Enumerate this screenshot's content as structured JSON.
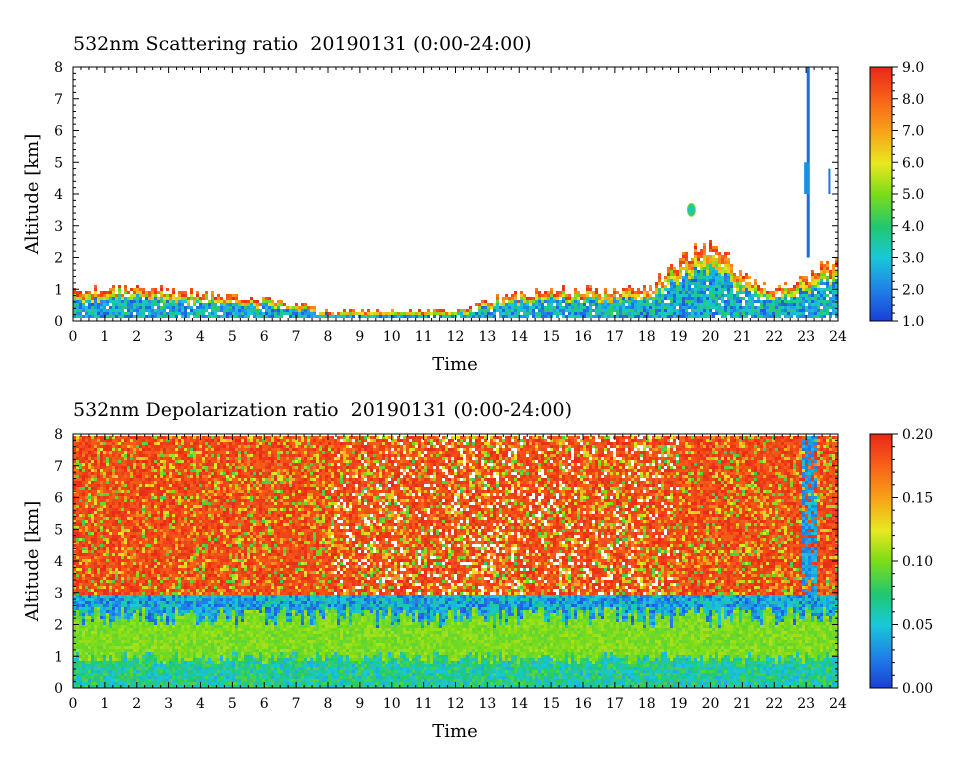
{
  "chart_data": [
    {
      "type": "heatmap",
      "title": "532nm Scattering ratio  20190131 (0:00-24:00)",
      "xlabel": "Time",
      "ylabel": "Altitude [km]",
      "xlim": [
        0,
        24
      ],
      "ylim": [
        0,
        8
      ],
      "xticks": [
        "0",
        "1",
        "2",
        "3",
        "4",
        "5",
        "6",
        "7",
        "8",
        "9",
        "10",
        "11",
        "12",
        "13",
        "14",
        "15",
        "16",
        "17",
        "18",
        "19",
        "20",
        "21",
        "22",
        "23",
        "24"
      ],
      "yticks": [
        "0",
        "1",
        "2",
        "3",
        "4",
        "5",
        "6",
        "7",
        "8"
      ],
      "colorbar": {
        "range": [
          1.0,
          9.0
        ],
        "ticks": [
          "1.0",
          "2.0",
          "3.0",
          "4.0",
          "5.0",
          "6.0",
          "7.0",
          "8.0",
          "9.0"
        ]
      },
      "features": {
        "boundary_layer_top_km": [
          [
            0,
            1.0
          ],
          [
            2,
            1.1
          ],
          [
            4,
            0.9
          ],
          [
            5,
            0.85
          ],
          [
            7,
            0.6
          ],
          [
            8,
            0.35
          ],
          [
            12,
            0.35
          ],
          [
            13,
            0.7
          ],
          [
            14,
            0.9
          ],
          [
            15,
            1.0
          ],
          [
            18,
            1.0
          ],
          [
            19,
            2.0
          ],
          [
            20,
            2.4
          ],
          [
            21,
            1.5
          ],
          [
            22,
            1.0
          ],
          [
            23,
            1.5
          ],
          [
            24,
            1.9
          ]
        ],
        "cloud_23h_top_km": 8.0,
        "cloud_19_4h_km": [
          3.3,
          3.7
        ]
      }
    },
    {
      "type": "heatmap",
      "title": "532nm Depolarization ratio  20190131 (0:00-24:00)",
      "xlabel": "Time",
      "ylabel": "Altitude [km]",
      "xlim": [
        0,
        24
      ],
      "ylim": [
        0,
        8
      ],
      "xticks": [
        "0",
        "1",
        "2",
        "3",
        "4",
        "5",
        "6",
        "7",
        "8",
        "9",
        "10",
        "11",
        "12",
        "13",
        "14",
        "15",
        "16",
        "17",
        "18",
        "19",
        "20",
        "21",
        "22",
        "23",
        "24"
      ],
      "yticks": [
        "0",
        "1",
        "2",
        "3",
        "4",
        "5",
        "6",
        "7",
        "8"
      ],
      "colorbar": {
        "range": [
          0.0,
          0.2
        ],
        "ticks": [
          "0.00",
          "0.05",
          "0.10",
          "0.15",
          "0.20"
        ]
      },
      "features": {
        "low_layer_top_km": 1.0,
        "mid_layer_top_km": 2.3,
        "noisy_above_km": 3.0
      }
    }
  ]
}
